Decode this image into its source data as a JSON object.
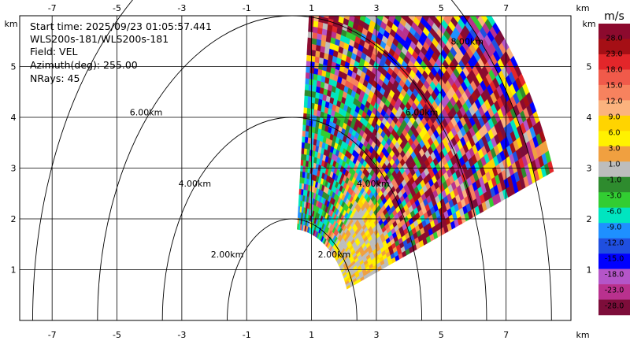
{
  "info": {
    "start_time": "Start time: 2025/09/23 01:05:57.441",
    "station": "WLS200s-181/WLS200s-181",
    "field": "Field: VEL",
    "azimuth": "Azimuth(deg): 255.00",
    "nrays": "NRays: 45"
  },
  "chart_data": {
    "type": "heatmap",
    "plot": "PPI scan of radial velocity",
    "x_unit": "km",
    "y_unit": "km",
    "x_ticks": [
      -7,
      -5,
      -3,
      -1,
      1,
      3,
      5,
      7
    ],
    "y_ticks": [
      1,
      2,
      3,
      4,
      5
    ],
    "xlim": [
      -8,
      9
    ],
    "ylim": [
      0,
      6
    ],
    "grid": true,
    "range_rings": [
      {
        "radius_km": 2,
        "label": "2.00km"
      },
      {
        "radius_km": 4,
        "label": "4.00km"
      },
      {
        "radius_km": 6,
        "label": "6.00km"
      },
      {
        "radius_km": 8,
        "label": "8.00km"
      }
    ],
    "origin_km": [
      0.4,
      0
    ],
    "sector": {
      "az_from_deg": 5,
      "az_to_deg": 70,
      "r_min_km": 1.8,
      "r_max_km": 8.5,
      "x_max_km": 8.7
    },
    "colorbar": {
      "unit": "m/s",
      "tick_labels": [
        "28.0",
        "23.0",
        "18.0",
        "15.0",
        "12.0",
        "9.0",
        "6.0",
        "3.0",
        "1.0",
        "-1.0",
        "-3.0",
        "-6.0",
        "-9.0",
        "-12.0",
        "-15.0",
        "-18.0",
        "-23.0",
        "-28.0"
      ],
      "colors": [
        "#8c0a2e",
        "#a50f15",
        "#e3262a",
        "#f05a4a",
        "#f7825e",
        "#fbb37e",
        "#ffd400",
        "#fff200",
        "#f0a040",
        "#bdbdbd",
        "#2e8b2e",
        "#32cd32",
        "#00e5c0",
        "#1e90ff",
        "#1f4fe0",
        "#0000ff",
        "#b455c8",
        "#b9318e",
        "#7d0d3a"
      ]
    }
  }
}
